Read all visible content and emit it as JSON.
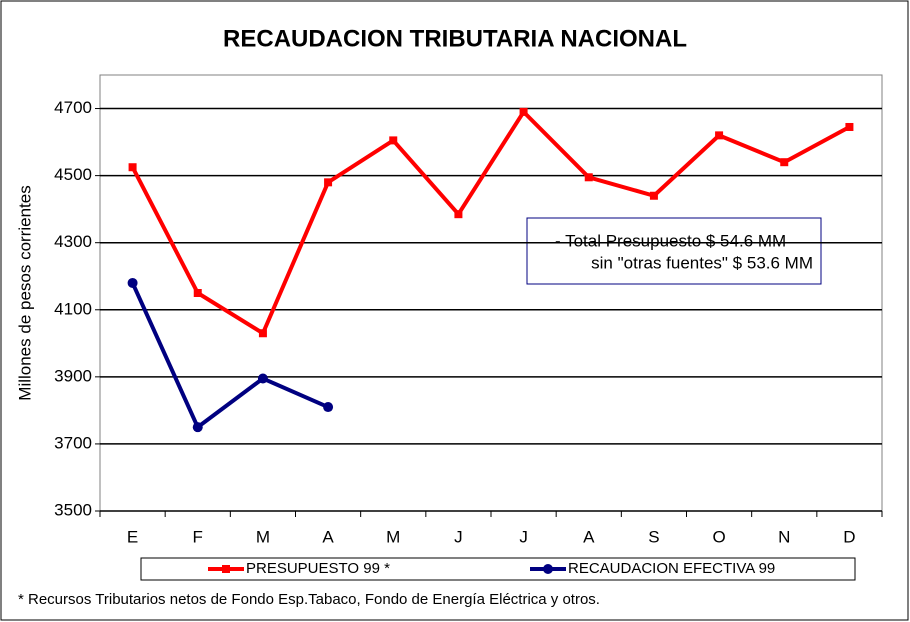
{
  "chart_data": {
    "type": "line",
    "title": "RECAUDACION TRIBUTARIA NACIONAL",
    "ylabel": "Millones de pesos corrientes",
    "categories": [
      "E",
      "F",
      "M",
      "A",
      "M",
      "J",
      "J",
      "A",
      "S",
      "O",
      "N",
      "D"
    ],
    "series": [
      {
        "name": "PRESUPUESTO 99 *",
        "color": "#ff0000",
        "marker": "square",
        "values": [
          4525,
          4150,
          4030,
          4480,
          4605,
          4385,
          4690,
          4495,
          4440,
          4620,
          4540,
          4645
        ]
      },
      {
        "name": "RECAUDACION EFECTIVA 99",
        "color": "#000080",
        "marker": "circle",
        "values": [
          4180,
          3750,
          3895,
          3810,
          null,
          null,
          null,
          null,
          null,
          null,
          null,
          null
        ]
      }
    ],
    "ylim": [
      3500,
      4800
    ],
    "yticks": [
      3500,
      3700,
      3900,
      4100,
      4300,
      4500,
      4700
    ],
    "grid": true,
    "annotation": [
      "-  Total Presupuesto $ 54.6 MM",
      "sin \"otras fuentes\" $ 53.6 MM"
    ],
    "footnote": "* Recursos Tributarios netos de Fondo Esp.Tabaco, Fondo de Energía Eléctrica y otros."
  }
}
